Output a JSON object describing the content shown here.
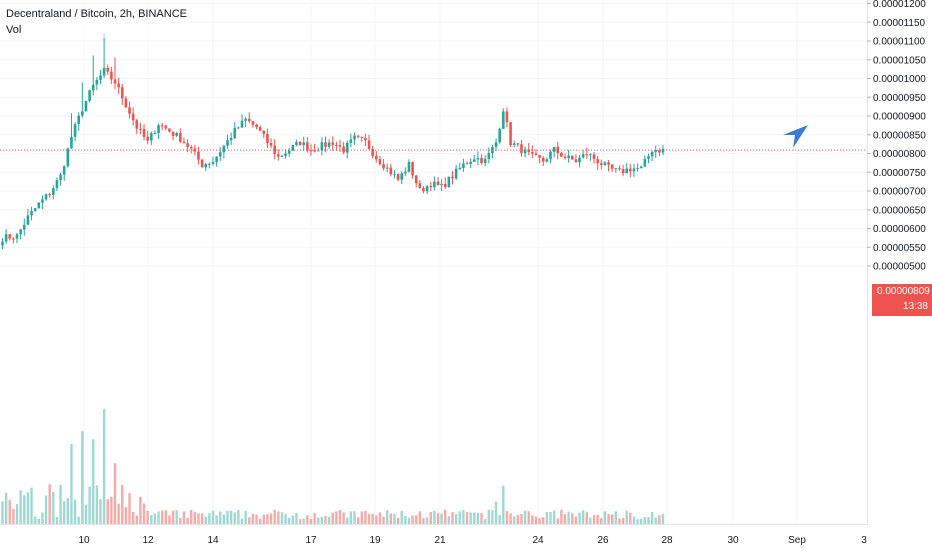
{
  "header": {
    "title": "Decentraland / Bitcoin, 2h, BINANCE",
    "volume_label": "Vol"
  },
  "price_label": {
    "price": "0.00000809",
    "countdown": "13:38",
    "background": "#ef5350"
  },
  "colors": {
    "up": "#26a69a",
    "down": "#ef5350",
    "up_volume": "#9fd8d2",
    "down_volume": "#f5aaa8",
    "grid": "#f0f3fa",
    "axis_text": "#131722",
    "axis_border": "#e0e3eb",
    "current_price_line": "#ef5350",
    "arrow": "#3a7bd5"
  },
  "icons": {
    "drawing": "navigation-arrow-icon"
  },
  "chart_data": {
    "type": "candlestick",
    "title": "Decentraland / Bitcoin, 2h, BINANCE",
    "ylim": [
      5e-06,
      1.2e-06
    ],
    "x_tick_labels": [
      "10",
      "12",
      "14",
      "17",
      "19",
      "21",
      "24",
      "26",
      "28",
      "30",
      "Sep",
      "3"
    ],
    "y_tick_labels": [
      "0.00001200",
      "0.00001150",
      "0.00001100",
      "0.00001050",
      "0.00001000",
      "0.00000950",
      "0.00000900",
      "0.00000850",
      "0.00000800",
      "0.00000750",
      "0.00000700",
      "0.00000650",
      "0.00000600",
      "0.00000550",
      "0.00000500"
    ],
    "current_price": 8.09e-06,
    "grid": true,
    "anchors": [
      [
        0,
        5.75e-06
      ],
      [
        4,
        5.8e-06
      ],
      [
        7,
        6.3e-06
      ],
      [
        10,
        6.65e-06
      ],
      [
        13,
        6.95e-06
      ],
      [
        16,
        7.4e-06
      ],
      [
        19,
        8.45e-06
      ],
      [
        22,
        9.2e-06
      ],
      [
        25,
        9.8e-06
      ],
      [
        28,
        1.02e-05
      ],
      [
        31,
        9.9e-06
      ],
      [
        34,
        9.3e-06
      ],
      [
        37,
        8.7e-06
      ],
      [
        40,
        8.3e-06
      ],
      [
        43,
        8.8e-06
      ],
      [
        46,
        8.6e-06
      ],
      [
        49,
        8.4e-06
      ],
      [
        52,
        8.1e-06
      ],
      [
        55,
        7.7e-06
      ],
      [
        58,
        7.8e-06
      ],
      [
        61,
        8.2e-06
      ],
      [
        64,
        8.6e-06
      ],
      [
        67,
        8.9e-06
      ],
      [
        70,
        8.7e-06
      ],
      [
        73,
        8.3e-06
      ],
      [
        76,
        7.9e-06
      ],
      [
        79,
        8.1e-06
      ],
      [
        82,
        8.3e-06
      ],
      [
        85,
        8.1e-06
      ],
      [
        88,
        8.2e-06
      ],
      [
        91,
        8.3e-06
      ],
      [
        94,
        8.1e-06
      ],
      [
        97,
        8.4e-06
      ],
      [
        100,
        8.3e-06
      ],
      [
        103,
        7.9e-06
      ],
      [
        106,
        7.6e-06
      ],
      [
        109,
        7.3e-06
      ],
      [
        112,
        7.7e-06
      ],
      [
        115,
        7e-06
      ],
      [
        118,
        7.2e-06
      ],
      [
        121,
        7.1e-06
      ],
      [
        124,
        7.4e-06
      ],
      [
        127,
        7.7e-06
      ],
      [
        130,
        7.9e-06
      ],
      [
        133,
        7.8e-06
      ],
      [
        136,
        8.3e-06
      ],
      [
        138,
        9.2e-06
      ],
      [
        140,
        8.3e-06
      ],
      [
        143,
        8.1e-06
      ],
      [
        146,
        7.9e-06
      ],
      [
        149,
        7.8e-06
      ],
      [
        152,
        8.1e-06
      ],
      [
        155,
        7.9e-06
      ],
      [
        158,
        7.8e-06
      ],
      [
        161,
        8e-06
      ],
      [
        164,
        7.8e-06
      ],
      [
        167,
        7.6e-06
      ],
      [
        170,
        7.5e-06
      ],
      [
        173,
        7.6e-06
      ],
      [
        176,
        7.6e-06
      ],
      [
        179,
        8.1e-06
      ],
      [
        182,
        8.09e-06
      ]
    ],
    "volume_spikes": [
      [
        28,
        0.72
      ],
      [
        22,
        0.58
      ],
      [
        25,
        0.53
      ],
      [
        19,
        0.5
      ],
      [
        31,
        0.38
      ],
      [
        138,
        0.24
      ],
      [
        136,
        0.14
      ]
    ]
  }
}
